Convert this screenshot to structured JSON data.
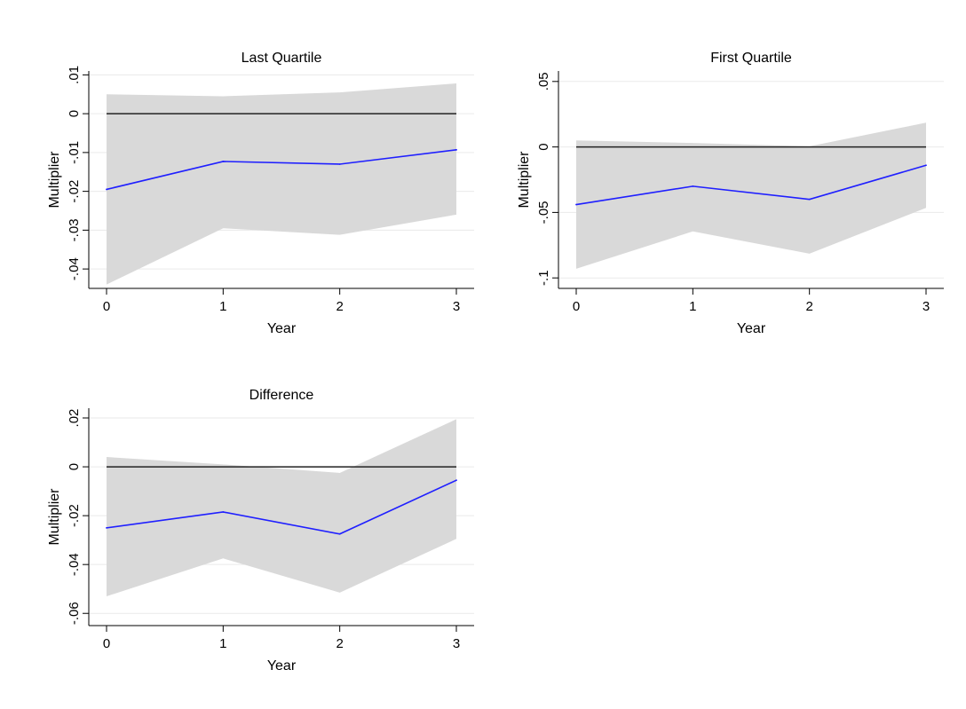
{
  "chart_data": [
    {
      "type": "line",
      "title": "Last Quartile",
      "xlabel": "Year",
      "ylabel": "Multiplier",
      "x": [
        0,
        1,
        2,
        3
      ],
      "xticks": [
        "0",
        "1",
        "2",
        "3"
      ],
      "ylim": [
        -0.045,
        0.011
      ],
      "yticks": [
        0.01,
        0,
        -0.01,
        -0.02,
        -0.03,
        -0.04
      ],
      "ytick_labels": [
        ".01",
        "0",
        "-.01",
        "-.02",
        "-.03",
        "-.04"
      ],
      "series": [
        {
          "values": [
            -0.0195,
            -0.0123,
            -0.013,
            -0.0093
          ],
          "color": "#1f1fff"
        }
      ],
      "ci_upper": [
        0.005,
        0.0045,
        0.0055,
        0.0078
      ],
      "ci_lower": [
        -0.044,
        -0.0295,
        -0.0312,
        -0.026
      ],
      "reference_line": 0,
      "grid": true
    },
    {
      "type": "line",
      "title": "First Quartile",
      "xlabel": "Year",
      "ylabel": "Multiplier",
      "x": [
        0,
        1,
        2,
        3
      ],
      "xticks": [
        "0",
        "1",
        "2",
        "3"
      ],
      "ylim": [
        -0.108,
        0.058
      ],
      "yticks": [
        0.05,
        0,
        -0.05,
        -0.1
      ],
      "ytick_labels": [
        ".05",
        "0",
        "-.05",
        "-.1"
      ],
      "series": [
        {
          "values": [
            -0.044,
            -0.03,
            -0.04,
            -0.014
          ],
          "color": "#1f1fff"
        }
      ],
      "ci_upper": [
        0.005,
        0.003,
        0.0005,
        0.0185
      ],
      "ci_lower": [
        -0.093,
        -0.0645,
        -0.0815,
        -0.0465
      ],
      "reference_line": 0,
      "grid": true
    },
    {
      "type": "line",
      "title": "Difference",
      "xlabel": "Year",
      "ylabel": "Multiplier",
      "x": [
        0,
        1,
        2,
        3
      ],
      "xticks": [
        "0",
        "1",
        "2",
        "3"
      ],
      "ylim": [
        -0.065,
        0.024
      ],
      "yticks": [
        0.02,
        0,
        -0.02,
        -0.04,
        -0.06
      ],
      "ytick_labels": [
        ".02",
        "0",
        "-.02",
        "-.04",
        "-.06"
      ],
      "series": [
        {
          "values": [
            -0.025,
            -0.0185,
            -0.0275,
            -0.0055
          ],
          "color": "#1f1fff"
        }
      ],
      "ci_upper": [
        0.004,
        0.001,
        -0.0025,
        0.0195
      ],
      "ci_lower": [
        -0.053,
        -0.0375,
        -0.0515,
        -0.0295
      ],
      "reference_line": 0,
      "grid": true
    }
  ]
}
